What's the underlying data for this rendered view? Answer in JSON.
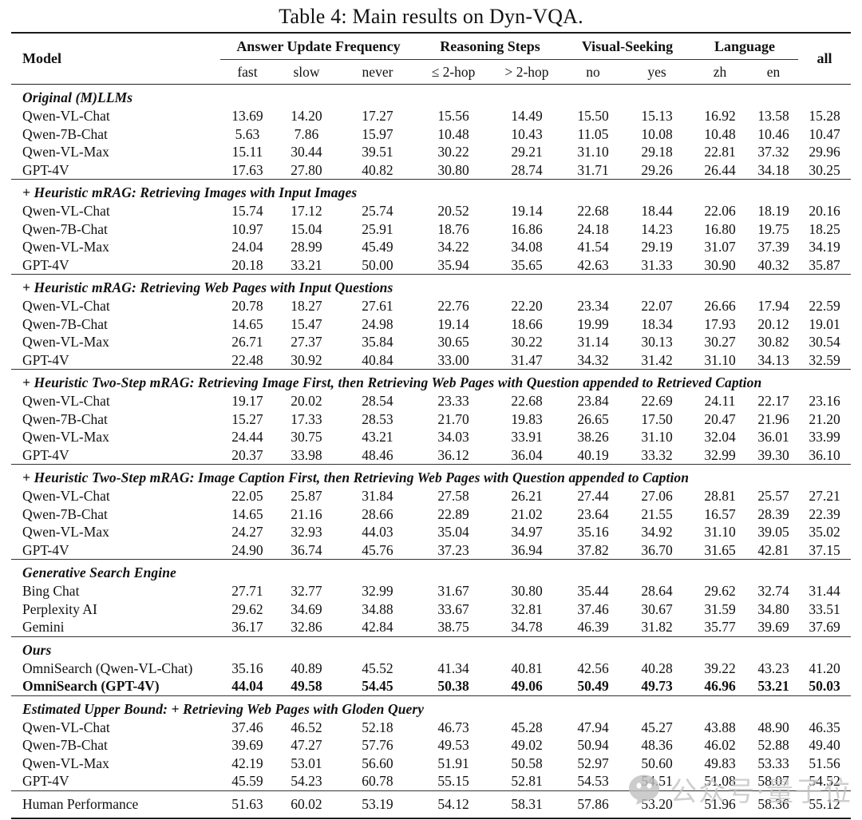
{
  "title": "Table 4: Main results on Dyn-VQA.",
  "table": {
    "model_header": "Model",
    "all_header": "all",
    "group_headers": [
      {
        "label": "Answer Update Frequency",
        "span": 3
      },
      {
        "label": "Reasoning Steps",
        "span": 2
      },
      {
        "label": "Visual-Seeking",
        "span": 2
      },
      {
        "label": "Language",
        "span": 2
      }
    ],
    "sub_headers": [
      "fast",
      "slow",
      "never",
      "≤ 2-hop",
      "> 2-hop",
      "no",
      "yes",
      "zh",
      "en"
    ],
    "sections": [
      {
        "heading": "Original (M)LLMs",
        "rows": [
          {
            "model": "Qwen-VL-Chat",
            "values": [
              "13.69",
              "14.20",
              "17.27",
              "15.56",
              "14.49",
              "15.50",
              "15.13",
              "16.92",
              "13.58",
              "15.28"
            ]
          },
          {
            "model": "Qwen-7B-Chat",
            "values": [
              "5.63",
              "7.86",
              "15.97",
              "10.48",
              "10.43",
              "11.05",
              "10.08",
              "10.48",
              "10.46",
              "10.47"
            ]
          },
          {
            "model": "Qwen-VL-Max",
            "values": [
              "15.11",
              "30.44",
              "39.51",
              "30.22",
              "29.21",
              "31.10",
              "29.18",
              "22.81",
              "37.32",
              "29.96"
            ]
          },
          {
            "model": "GPT-4V",
            "values": [
              "17.63",
              "27.80",
              "40.82",
              "30.80",
              "28.74",
              "31.71",
              "29.26",
              "26.44",
              "34.18",
              "30.25"
            ]
          }
        ]
      },
      {
        "heading": "+ Heuristic mRAG: Retrieving Images with Input Images",
        "rows": [
          {
            "model": "Qwen-VL-Chat",
            "values": [
              "15.74",
              "17.12",
              "25.74",
              "20.52",
              "19.14",
              "22.68",
              "18.44",
              "22.06",
              "18.19",
              "20.16"
            ]
          },
          {
            "model": "Qwen-7B-Chat",
            "values": [
              "10.97",
              "15.04",
              "25.91",
              "18.76",
              "16.86",
              "24.18",
              "14.23",
              "16.80",
              "19.75",
              "18.25"
            ]
          },
          {
            "model": "Qwen-VL-Max",
            "values": [
              "24.04",
              "28.99",
              "45.49",
              "34.22",
              "34.08",
              "41.54",
              "29.19",
              "31.07",
              "37.39",
              "34.19"
            ]
          },
          {
            "model": "GPT-4V",
            "values": [
              "20.18",
              "33.21",
              "50.00",
              "35.94",
              "35.65",
              "42.63",
              "31.33",
              "30.90",
              "40.32",
              "35.87"
            ]
          }
        ]
      },
      {
        "heading": "+ Heuristic mRAG: Retrieving Web Pages with Input Questions",
        "rows": [
          {
            "model": "Qwen-VL-Chat",
            "values": [
              "20.78",
              "18.27",
              "27.61",
              "22.76",
              "22.20",
              "23.34",
              "22.07",
              "26.66",
              "17.94",
              "22.59"
            ]
          },
          {
            "model": "Qwen-7B-Chat",
            "values": [
              "14.65",
              "15.47",
              "24.98",
              "19.14",
              "18.66",
              "19.99",
              "18.34",
              "17.93",
              "20.12",
              "19.01"
            ]
          },
          {
            "model": "Qwen-VL-Max",
            "values": [
              "26.71",
              "27.37",
              "35.84",
              "30.65",
              "30.22",
              "31.14",
              "30.13",
              "30.27",
              "30.82",
              "30.54"
            ]
          },
          {
            "model": "GPT-4V",
            "values": [
              "22.48",
              "30.92",
              "40.84",
              "33.00",
              "31.47",
              "34.32",
              "31.42",
              "31.10",
              "34.13",
              "32.59"
            ]
          }
        ]
      },
      {
        "heading": "+ Heuristic Two-Step mRAG: Retrieving Image First, then Retrieving Web Pages with Question appended to Retrieved Caption",
        "rows": [
          {
            "model": "Qwen-VL-Chat",
            "values": [
              "19.17",
              "20.02",
              "28.54",
              "23.33",
              "22.68",
              "23.84",
              "22.69",
              "24.11",
              "22.17",
              "23.16"
            ]
          },
          {
            "model": "Qwen-7B-Chat",
            "values": [
              "15.27",
              "17.33",
              "28.53",
              "21.70",
              "19.83",
              "26.65",
              "17.50",
              "20.47",
              "21.96",
              "21.20"
            ]
          },
          {
            "model": "Qwen-VL-Max",
            "values": [
              "24.44",
              "30.75",
              "43.21",
              "34.03",
              "33.91",
              "38.26",
              "31.10",
              "32.04",
              "36.01",
              "33.99"
            ]
          },
          {
            "model": "GPT-4V",
            "values": [
              "20.37",
              "33.98",
              "48.46",
              "36.12",
              "36.04",
              "40.19",
              "33.32",
              "32.99",
              "39.30",
              "36.10"
            ]
          }
        ]
      },
      {
        "heading": "+ Heuristic Two-Step mRAG: Image Caption First, then Retrieving Web Pages with Question appended to Caption",
        "rows": [
          {
            "model": "Qwen-VL-Chat",
            "values": [
              "22.05",
              "25.87",
              "31.84",
              "27.58",
              "26.21",
              "27.44",
              "27.06",
              "28.81",
              "25.57",
              "27.21"
            ]
          },
          {
            "model": "Qwen-7B-Chat",
            "values": [
              "14.65",
              "21.16",
              "28.66",
              "22.89",
              "21.02",
              "23.64",
              "21.55",
              "16.57",
              "28.39",
              "22.39"
            ]
          },
          {
            "model": "Qwen-VL-Max",
            "values": [
              "24.27",
              "32.93",
              "44.03",
              "35.04",
              "34.97",
              "35.16",
              "34.92",
              "31.10",
              "39.05",
              "35.02"
            ]
          },
          {
            "model": "GPT-4V",
            "values": [
              "24.90",
              "36.74",
              "45.76",
              "37.23",
              "36.94",
              "37.82",
              "36.70",
              "31.65",
              "42.81",
              "37.15"
            ]
          }
        ]
      },
      {
        "heading": "Generative Search Engine",
        "rows": [
          {
            "model": "Bing Chat",
            "values": [
              "27.71",
              "32.77",
              "32.99",
              "31.67",
              "30.80",
              "35.44",
              "28.64",
              "29.62",
              "32.74",
              "31.44"
            ]
          },
          {
            "model": "Perplexity AI",
            "values": [
              "29.62",
              "34.69",
              "34.88",
              "33.67",
              "32.81",
              "37.46",
              "30.67",
              "31.59",
              "34.80",
              "33.51"
            ]
          },
          {
            "model": "Gemini",
            "values": [
              "36.17",
              "32.86",
              "42.84",
              "38.75",
              "34.78",
              "46.39",
              "31.82",
              "35.77",
              "39.69",
              "37.69"
            ]
          }
        ]
      },
      {
        "heading": "Ours",
        "rows": [
          {
            "model": "OmniSearch (Qwen-VL-Chat)",
            "values": [
              "35.16",
              "40.89",
              "45.52",
              "41.34",
              "40.81",
              "42.56",
              "40.28",
              "39.22",
              "43.23",
              "41.20"
            ]
          },
          {
            "model": "OmniSearch (GPT-4V)",
            "bold": true,
            "values": [
              "44.04",
              "49.58",
              "54.45",
              "50.38",
              "49.06",
              "50.49",
              "49.73",
              "46.96",
              "53.21",
              "50.03"
            ]
          }
        ]
      },
      {
        "heading": "Estimated Upper Bound: + Retrieving Web Pages with Gloden Query",
        "rows": [
          {
            "model": "Qwen-VL-Chat",
            "values": [
              "37.46",
              "46.52",
              "52.18",
              "46.73",
              "45.28",
              "47.94",
              "45.27",
              "43.88",
              "48.90",
              "46.35"
            ]
          },
          {
            "model": "Qwen-7B-Chat",
            "values": [
              "39.69",
              "47.27",
              "57.76",
              "49.53",
              "49.02",
              "50.94",
              "48.36",
              "46.02",
              "52.88",
              "49.40"
            ]
          },
          {
            "model": "Qwen-VL-Max",
            "values": [
              "42.19",
              "53.01",
              "56.60",
              "51.91",
              "50.58",
              "52.97",
              "50.60",
              "49.83",
              "53.33",
              "51.56"
            ]
          },
          {
            "model": "GPT-4V",
            "values": [
              "45.59",
              "54.23",
              "60.78",
              "55.15",
              "52.81",
              "54.53",
              "54.51",
              "51.08",
              "58.07",
              "54.52"
            ]
          }
        ]
      }
    ],
    "footer_row": {
      "model": "Human Performance",
      "values": [
        "51.63",
        "60.02",
        "53.19",
        "54.12",
        "58.31",
        "57.86",
        "53.20",
        "51.96",
        "58.36",
        "55.12"
      ]
    }
  },
  "watermark": {
    "text": "公众号·量子位",
    "icon": "chat-bubble-icon",
    "color": "#c4c4c4"
  }
}
